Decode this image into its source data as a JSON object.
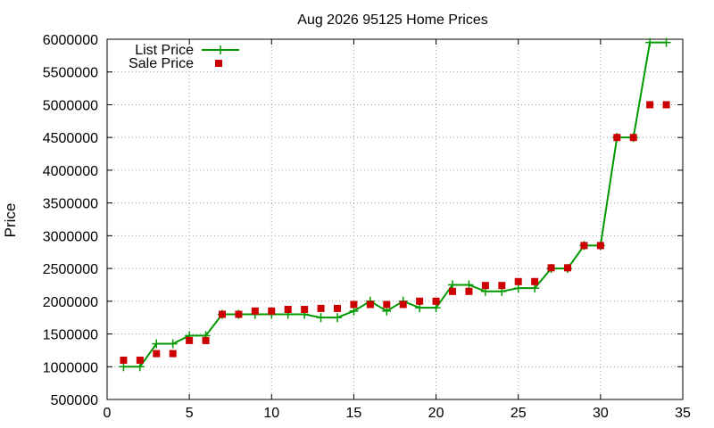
{
  "chart_data": {
    "type": "line",
    "title": "Aug 2026 95125 Home Prices",
    "xlabel": "",
    "ylabel": "Price",
    "xlim": [
      0,
      35
    ],
    "ylim": [
      500000,
      6000000
    ],
    "xticks": [
      0,
      5,
      10,
      15,
      20,
      25,
      30,
      35
    ],
    "yticks": [
      500000,
      1000000,
      1500000,
      2000000,
      2500000,
      3000000,
      3500000,
      4000000,
      4500000,
      5000000,
      5500000,
      6000000
    ],
    "grid": true,
    "legend_position": "top-left",
    "x": [
      1,
      2,
      3,
      4,
      5,
      6,
      7,
      8,
      9,
      10,
      11,
      12,
      13,
      14,
      15,
      16,
      17,
      18,
      19,
      20,
      21,
      22,
      23,
      24,
      25,
      26,
      27,
      28,
      29,
      30,
      31,
      32,
      33,
      34
    ],
    "series": [
      {
        "name": "List Price",
        "style": "line-plus",
        "color": "#009900",
        "values": [
          1000000,
          1000000,
          1350000,
          1350000,
          1475000,
          1475000,
          1800000,
          1800000,
          1800000,
          1800000,
          1800000,
          1800000,
          1750000,
          1750000,
          1850000,
          2000000,
          1850000,
          2000000,
          1900000,
          1900000,
          2250000,
          2250000,
          2150000,
          2150000,
          2200000,
          2200000,
          2500000,
          2500000,
          2850000,
          2850000,
          4500000,
          4500000,
          5950000,
          5950000
        ]
      },
      {
        "name": "Sale Price",
        "style": "square-points",
        "color": "#cc0000",
        "values": [
          1100000,
          1100000,
          1200000,
          1200000,
          1400000,
          1400000,
          1800000,
          1800000,
          1850000,
          1850000,
          1875000,
          1875000,
          1890000,
          1890000,
          1950000,
          1950000,
          1950000,
          1950000,
          2000000,
          2000000,
          2150000,
          2150000,
          2240000,
          2240000,
          2300000,
          2300000,
          2510000,
          2510000,
          2850000,
          2850000,
          4500000,
          4500000,
          5000000,
          5000000
        ]
      }
    ]
  }
}
